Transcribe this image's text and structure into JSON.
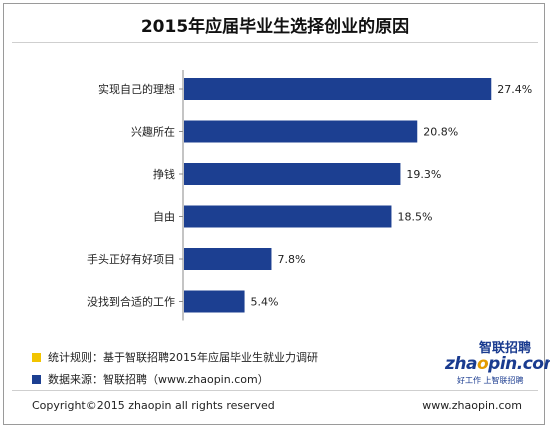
{
  "title": "2015年应届毕业生选择创业的原因",
  "chart_data": {
    "type": "bar",
    "orientation": "horizontal",
    "categories": [
      "实现自己的理想",
      "兴趣所在",
      "挣钱",
      "自由",
      "手头正好有好项目",
      "没找到合适的工作"
    ],
    "values": [
      27.4,
      20.8,
      19.3,
      18.5,
      7.8,
      5.4
    ],
    "value_labels": [
      "27.4%",
      "20.8%",
      "19.3%",
      "18.5%",
      "7.8%",
      "5.4%"
    ],
    "xlim": [
      0,
      28
    ],
    "grid": false,
    "bar_color": "#1c3f91"
  },
  "legend": [
    {
      "text": "统计规则：基于智联招聘2015年应届毕业生就业力调研",
      "color": "#f2c400"
    },
    {
      "text": "数据来源：智联招聘（www.zhaopin.com）",
      "color": "#1c3f91"
    }
  ],
  "logo": {
    "top_text": "智联招聘",
    "main_text_a": "zha",
    "main_text_o": "o",
    "main_text_b": "pin.com",
    "sub_text": "好工作 上智联招聘"
  },
  "footer": {
    "copyright": "Copyright©2015 zhaopin all rights reserved",
    "url": "www.zhaopin.com"
  }
}
